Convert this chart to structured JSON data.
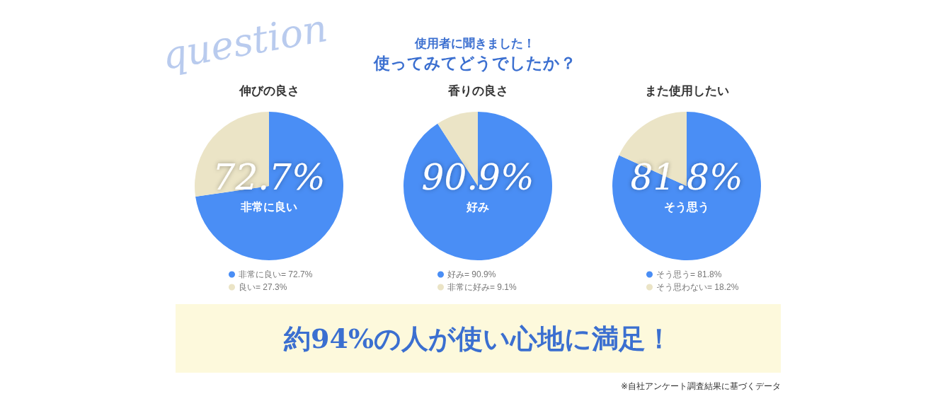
{
  "chart_data": [
    {
      "type": "pie",
      "title": "伸びの良さ",
      "categories": [
        "非常に良い= 72.7%",
        "良い= 27.3%"
      ],
      "values": [
        72.7,
        27.3
      ],
      "colors": [
        "#4a8ef5",
        "#ebe4c6"
      ],
      "value_labels": [
        "72.7%\n非常に良い",
        null
      ],
      "legend": "bottom",
      "annotations": [
        "question",
        "使用者に聞きました！",
        "使ってみてどうでしたか？"
      ]
    },
    {
      "type": "pie",
      "title": "香りの良さ",
      "categories": [
        "好み= 90.9%",
        "非常に好み= 9.1%"
      ],
      "values": [
        90.9,
        9.1
      ],
      "colors": [
        "#4a8ef5",
        "#ebe4c6"
      ],
      "value_labels": [
        "90.9%\n好み",
        null
      ],
      "legend": "bottom"
    },
    {
      "type": "pie",
      "title": "また使用したい",
      "categories": [
        "そう思う= 81.8%",
        "そう思わない= 18.2%"
      ],
      "values": [
        81.8,
        18.2
      ],
      "colors": [
        "#4a8ef5",
        "#ebe4c6"
      ],
      "value_labels": [
        "81.8%\nそう思う",
        null
      ],
      "legend": "bottom",
      "annotations": [
        "約94%の人が使い心地に満足！",
        "※自社アンケート調査結果に基づくデータ"
      ]
    }
  ]
}
